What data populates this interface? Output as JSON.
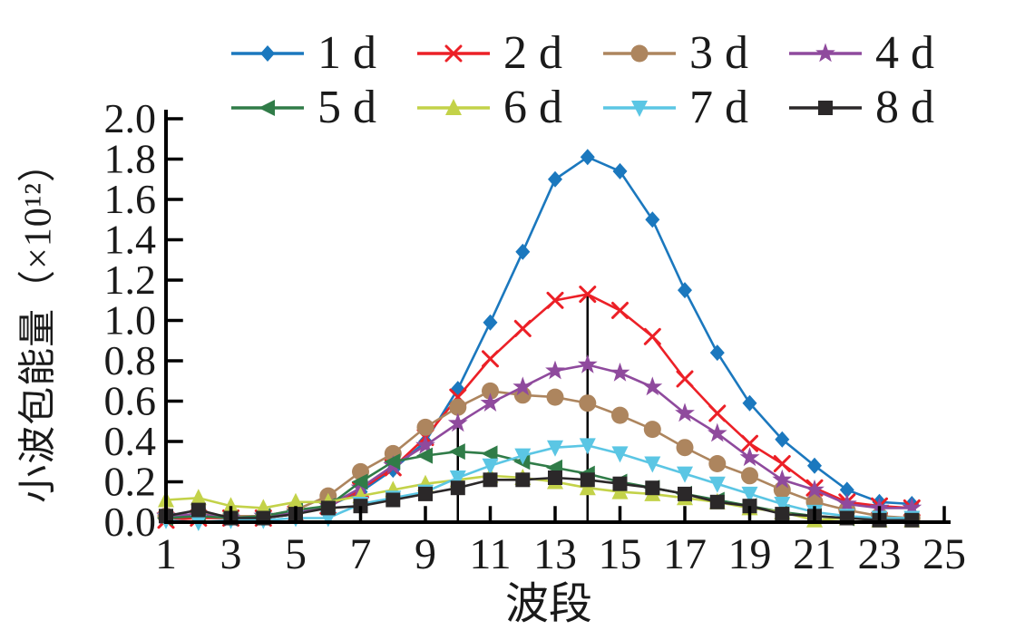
{
  "figure": {
    "background": "#ffffff",
    "text_color": "#1a1a1a",
    "axis_color": "#000000"
  },
  "chart_data": {
    "type": "line",
    "title": "",
    "xlabel": "波段",
    "ylabel": "小波包能量（×10¹²）",
    "xlim": [
      1,
      25
    ],
    "ylim": [
      0.0,
      2.0
    ],
    "grid": false,
    "legend": {
      "position": "top",
      "columns": 4,
      "rows": 2
    },
    "xtick_labels": [
      "1",
      "3",
      "5",
      "7",
      "9",
      "11",
      "13",
      "15",
      "17",
      "19",
      "21",
      "23",
      "25"
    ],
    "ytick_labels": [
      "0.0",
      "0.2",
      "0.4",
      "0.6",
      "0.8",
      "1.0",
      "1.2",
      "1.4",
      "1.6",
      "1.8",
      "2.0"
    ],
    "x": [
      1,
      2,
      3,
      4,
      5,
      6,
      7,
      8,
      9,
      10,
      11,
      12,
      13,
      14,
      15,
      16,
      17,
      18,
      19,
      20,
      21,
      22,
      23,
      24
    ],
    "series": [
      {
        "name": "1 d",
        "color": "#1B78BE",
        "marker": "diamond",
        "values": [
          0.02,
          0.03,
          0.02,
          0.02,
          0.04,
          0.08,
          0.15,
          0.26,
          0.4,
          0.66,
          0.99,
          1.34,
          1.7,
          1.81,
          1.74,
          1.5,
          1.15,
          0.84,
          0.59,
          0.41,
          0.28,
          0.16,
          0.1,
          0.09
        ]
      },
      {
        "name": "2 d",
        "color": "#EC2027",
        "marker": "x",
        "values": [
          0.01,
          0.02,
          0.02,
          0.02,
          0.04,
          0.08,
          0.16,
          0.27,
          0.42,
          0.62,
          0.81,
          0.96,
          1.1,
          1.13,
          1.05,
          0.92,
          0.71,
          0.54,
          0.39,
          0.29,
          0.17,
          0.1,
          0.08,
          0.07
        ]
      },
      {
        "name": "3 d",
        "color": "#AD855E",
        "marker": "circle",
        "values": [
          0.03,
          0.04,
          0.03,
          0.03,
          0.06,
          0.13,
          0.25,
          0.34,
          0.47,
          0.57,
          0.65,
          0.63,
          0.62,
          0.59,
          0.53,
          0.46,
          0.37,
          0.29,
          0.23,
          0.16,
          0.1,
          0.06,
          0.03,
          0.02
        ]
      },
      {
        "name": "4 d",
        "color": "#8F4A9D",
        "marker": "star",
        "values": [
          0.03,
          0.04,
          0.02,
          0.03,
          0.05,
          0.08,
          0.17,
          0.28,
          0.38,
          0.49,
          0.59,
          0.67,
          0.75,
          0.78,
          0.74,
          0.67,
          0.54,
          0.44,
          0.32,
          0.21,
          0.16,
          0.09,
          0.07,
          0.07
        ]
      },
      {
        "name": "5 d",
        "color": "#307C48",
        "marker": "triangle-left",
        "values": [
          0.02,
          0.03,
          0.02,
          0.03,
          0.06,
          0.08,
          0.2,
          0.3,
          0.33,
          0.35,
          0.34,
          0.3,
          0.27,
          0.24,
          0.2,
          0.17,
          0.14,
          0.11,
          0.08,
          0.05,
          0.03,
          0.02,
          0.015,
          0.015
        ]
      },
      {
        "name": "6 d",
        "color": "#C3D249",
        "marker": "triangle-up",
        "values": [
          0.11,
          0.12,
          0.08,
          0.07,
          0.1,
          0.1,
          0.13,
          0.16,
          0.19,
          0.21,
          0.23,
          0.22,
          0.2,
          0.17,
          0.15,
          0.14,
          0.12,
          0.1,
          0.07,
          0.05,
          0.01,
          0.02,
          0.01,
          0.01
        ]
      },
      {
        "name": "7 d",
        "color": "#5BC6E4",
        "marker": "triangle-down",
        "values": [
          0.01,
          0.0,
          0.01,
          0.01,
          0.02,
          0.02,
          0.09,
          0.12,
          0.15,
          0.22,
          0.28,
          0.33,
          0.37,
          0.38,
          0.34,
          0.29,
          0.24,
          0.19,
          0.14,
          0.09,
          0.05,
          0.03,
          0.02,
          0.02
        ]
      },
      {
        "name": "8 d",
        "color": "#2B2829",
        "marker": "square",
        "values": [
          0.03,
          0.06,
          0.02,
          0.02,
          0.04,
          0.07,
          0.08,
          0.11,
          0.14,
          0.17,
          0.21,
          0.21,
          0.22,
          0.21,
          0.19,
          0.17,
          0.14,
          0.1,
          0.08,
          0.04,
          0.03,
          0.02,
          0.01,
          0.01
        ]
      }
    ],
    "annotations": [
      {
        "type": "vline",
        "x": 10,
        "y0": 0.0,
        "y1": 0.66,
        "color": "#000000"
      },
      {
        "type": "vline",
        "x": 14,
        "y0": 0.0,
        "y1": 1.13,
        "color": "#000000"
      }
    ]
  }
}
